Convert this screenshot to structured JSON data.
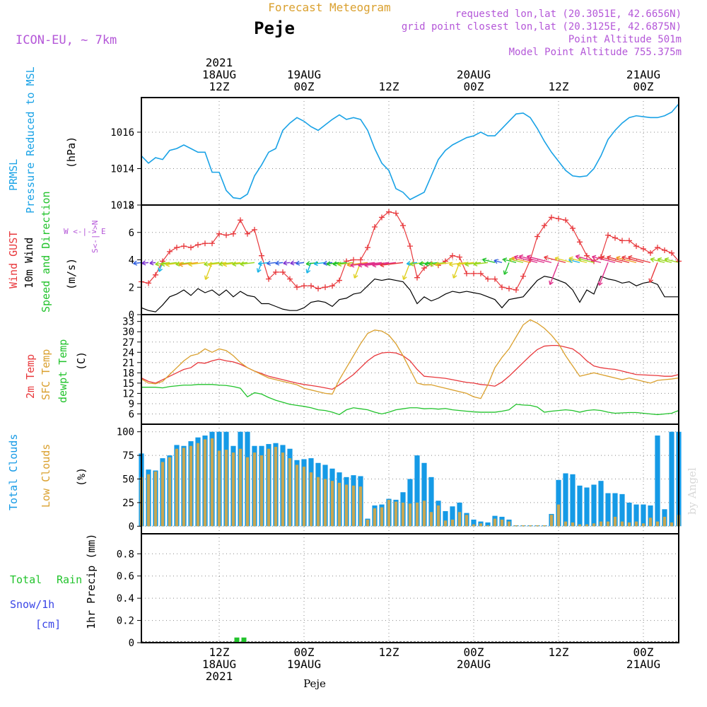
{
  "header": {
    "product_title": "Forecast Meteogram",
    "station": "Peje",
    "model": "ICON-EU, ~ 7km",
    "requested": "requested lon,lat (20.3051E, 42.6656N)",
    "grid_point": "grid point closest lon,lat (20.3125E, 42.6875N)",
    "point_altitude": "Point Altitude 501m",
    "model_altitude": "Model Point Altitude 755.375m"
  },
  "colors": {
    "pressure": "#19a2e6",
    "gust": "#e8383c",
    "wind": "#000000",
    "temp2m": "#e8383c",
    "sfc": "#daa02e",
    "dewpt": "#22c32c",
    "total_clouds": "#159ae6",
    "low_clouds": "#c8a752",
    "rain": "#22c32c",
    "snow": "#3a45e6",
    "purple": "#b457d8"
  },
  "time_axis": {
    "top": [
      {
        "x_hours": 12,
        "lines": [
          "2021",
          "18AUG",
          "12Z"
        ]
      },
      {
        "x_hours": 24,
        "lines": [
          "19AUG",
          "00Z"
        ]
      },
      {
        "x_hours": 36,
        "lines": [
          "12Z"
        ]
      },
      {
        "x_hours": 48,
        "lines": [
          "20AUG",
          "00Z"
        ]
      },
      {
        "x_hours": 60,
        "lines": [
          "12Z"
        ]
      },
      {
        "x_hours": 72,
        "lines": [
          "21AUG",
          "00Z"
        ]
      }
    ],
    "bottom": [
      {
        "x_hours": 12,
        "lines": [
          "12Z",
          "18AUG",
          "2021"
        ]
      },
      {
        "x_hours": 24,
        "lines": [
          "00Z",
          "19AUG"
        ]
      },
      {
        "x_hours": 36,
        "lines": [
          "12Z"
        ]
      },
      {
        "x_hours": 48,
        "lines": [
          "00Z",
          "20AUG"
        ]
      },
      {
        "x_hours": 60,
        "lines": [
          "12Z"
        ]
      },
      {
        "x_hours": 72,
        "lines": [
          "00Z",
          "21AUG"
        ]
      }
    ],
    "range_hours": [
      1,
      77
    ]
  },
  "panel_labels": {
    "pressure": {
      "l1": "PRMSL",
      "l2": "Pressure Reduced to MSL",
      "unit": "(hPa)"
    },
    "wind": {
      "l1": "Wind GUST",
      "l2": "10m Wind",
      "l3": "Speed and Direction",
      "unit": "(m/s)",
      "compass_n": "N",
      "compass_s": "S",
      "compass_ew": "W <-|-> E",
      "compass_sn": "S<-|->N"
    },
    "temp": {
      "l1": "2m Temp",
      "l2": "SFC Temp",
      "l3": "dewpt Temp",
      "unit": "(C)"
    },
    "clouds": {
      "l1": "Total Clouds",
      "l2": "Low Clouds",
      "unit": "(%)"
    },
    "precip": {
      "l1": "Total",
      "l1b": "Rain",
      "l2": "Snow/1h",
      "l3": "[cm]",
      "unit": "1hr Precip (mm)"
    }
  },
  "watermark": "by Angel",
  "footer": "Peje",
  "chart_data": [
    {
      "type": "line",
      "panel": "pressure",
      "x": [
        1,
        2,
        3,
        4,
        5,
        6,
        7,
        8,
        9,
        10,
        11,
        12,
        13,
        14,
        15,
        16,
        17,
        18,
        19,
        20,
        21,
        22,
        23,
        24,
        25,
        26,
        27,
        28,
        29,
        30,
        31,
        32,
        33,
        34,
        35,
        36,
        37,
        38,
        39,
        40,
        41,
        42,
        43,
        44,
        45,
        46,
        47,
        48,
        49,
        50,
        51,
        52,
        53,
        54,
        55,
        56,
        57,
        58,
        59,
        60,
        61,
        62,
        63,
        64,
        65,
        66,
        67,
        68,
        69,
        70,
        71,
        72,
        73,
        74,
        75,
        76,
        77
      ],
      "series": [
        {
          "name": "PRMSL",
          "values": [
            1014.7,
            1014.3,
            1014.6,
            1014.5,
            1015.0,
            1015.1,
            1015.3,
            1015.1,
            1014.9,
            1014.9,
            1013.8,
            1013.8,
            1012.8,
            1012.4,
            1012.35,
            1012.6,
            1013.6,
            1014.2,
            1014.9,
            1015.1,
            1016.1,
            1016.5,
            1016.8,
            1016.6,
            1016.3,
            1016.1,
            1016.4,
            1016.7,
            1016.95,
            1016.7,
            1016.8,
            1016.7,
            1016.1,
            1015.1,
            1014.3,
            1013.9,
            1012.9,
            1012.7,
            1012.3,
            1012.5,
            1012.7,
            1013.6,
            1014.5,
            1015.0,
            1015.3,
            1015.5,
            1015.7,
            1015.8,
            1016.0,
            1015.8,
            1015.8,
            1016.2,
            1016.6,
            1017.0,
            1017.05,
            1016.8,
            1016.2,
            1015.5,
            1014.9,
            1014.4,
            1013.9,
            1013.6,
            1013.55,
            1013.6,
            1014.0,
            1014.7,
            1015.6,
            1016.1,
            1016.5,
            1016.8,
            1016.9,
            1016.85,
            1016.8,
            1016.8,
            1016.9,
            1017.1,
            1017.55
          ]
        }
      ],
      "ylim": [
        1012,
        1017.9
      ],
      "yticks": [
        1012,
        1014,
        1016
      ],
      "ytick_labels": [
        "1012",
        "1014",
        "1016"
      ]
    },
    {
      "type": "line",
      "panel": "wind",
      "x": [
        1,
        2,
        3,
        4,
        5,
        6,
        7,
        8,
        9,
        10,
        11,
        12,
        13,
        14,
        15,
        16,
        17,
        18,
        19,
        20,
        21,
        22,
        23,
        24,
        25,
        26,
        27,
        28,
        29,
        30,
        31,
        32,
        33,
        34,
        35,
        36,
        37,
        38,
        39,
        40,
        41,
        42,
        43,
        44,
        45,
        46,
        47,
        48,
        49,
        50,
        51,
        52,
        53,
        54,
        55,
        56,
        57,
        58,
        59,
        60,
        61,
        62,
        63,
        64,
        65,
        66,
        67,
        68,
        69,
        70,
        71,
        72,
        73,
        74,
        75,
        76,
        77
      ],
      "series": [
        {
          "name": "Wind GUST",
          "values": [
            2.4,
            2.3,
            2.9,
            3.9,
            4.6,
            4.9,
            5.0,
            4.9,
            5.1,
            5.2,
            5.2,
            5.9,
            5.8,
            5.9,
            6.9,
            5.9,
            6.2,
            4.3,
            2.6,
            3.1,
            3.1,
            2.6,
            2.0,
            2.1,
            2.1,
            1.9,
            2.0,
            2.1,
            2.5,
            3.9,
            4.0,
            4.0,
            4.9,
            6.4,
            7.1,
            7.5,
            7.4,
            6.5,
            5.0,
            2.7,
            3.4,
            3.7,
            3.6,
            3.9,
            4.3,
            4.2,
            3.0,
            3.0,
            3.0,
            2.6,
            2.6,
            2.0,
            1.9,
            1.8,
            2.8,
            4.0,
            5.7,
            6.5,
            7.1,
            7.0,
            6.9,
            6.3,
            5.3,
            4.3,
            3.9,
            4.2,
            5.8,
            5.6,
            5.4,
            5.4,
            5.0,
            4.8,
            4.5,
            4.9,
            4.7,
            4.5,
            3.9
          ]
        },
        {
          "name": "10m Wind",
          "values": [
            0.5,
            0.3,
            0.2,
            0.7,
            1.3,
            1.5,
            1.8,
            1.4,
            1.9,
            1.6,
            1.8,
            1.4,
            1.8,
            1.3,
            1.7,
            1.4,
            1.3,
            0.8,
            0.8,
            0.6,
            0.4,
            0.3,
            0.3,
            0.5,
            0.9,
            1.0,
            0.9,
            0.6,
            1.1,
            1.2,
            1.5,
            1.6,
            2.1,
            2.6,
            2.5,
            2.6,
            2.5,
            2.4,
            1.8,
            0.8,
            1.3,
            1.0,
            1.2,
            1.5,
            1.7,
            1.6,
            1.7,
            1.6,
            1.5,
            1.3,
            1.1,
            0.5,
            1.1,
            1.2,
            1.3,
            1.9,
            2.5,
            2.8,
            2.7,
            2.5,
            2.3,
            1.8,
            0.9,
            1.8,
            1.5,
            2.8,
            2.6,
            2.5,
            2.3,
            2.4,
            2.1,
            2.3,
            2.4,
            2.2,
            1.3,
            1.3,
            1.3
          ]
        }
      ],
      "ylim": [
        0,
        8
      ],
      "yticks": [
        0,
        2,
        4,
        6,
        8
      ],
      "ytick_labels": [
        "0",
        "2",
        "4",
        "6",
        "8"
      ]
    },
    {
      "type": "line",
      "panel": "temp",
      "x": [
        1,
        2,
        3,
        4,
        5,
        6,
        7,
        8,
        9,
        10,
        11,
        12,
        13,
        14,
        15,
        16,
        17,
        18,
        19,
        20,
        21,
        22,
        23,
        24,
        25,
        26,
        27,
        28,
        29,
        30,
        31,
        32,
        33,
        34,
        35,
        36,
        37,
        38,
        39,
        40,
        41,
        42,
        43,
        44,
        45,
        46,
        47,
        48,
        49,
        50,
        51,
        52,
        53,
        54,
        55,
        56,
        57,
        58,
        59,
        60,
        61,
        62,
        63,
        64,
        65,
        66,
        67,
        68,
        69,
        70,
        71,
        72,
        73,
        74,
        75,
        76,
        77
      ],
      "series": [
        {
          "name": "2m Temp",
          "values": [
            16.5,
            15.5,
            15.0,
            16.0,
            17.0,
            18.0,
            19.0,
            19.5,
            21.0,
            20.8,
            21.5,
            22.0,
            21.5,
            21.2,
            20.5,
            19.5,
            18.5,
            17.8,
            17.0,
            16.5,
            16.0,
            15.5,
            15.0,
            14.6,
            14.3,
            14.0,
            13.6,
            13.2,
            14.5,
            16.0,
            17.5,
            19.5,
            21.5,
            23.0,
            23.8,
            24.0,
            23.8,
            23.0,
            21.5,
            19.0,
            17.0,
            16.8,
            16.6,
            16.4,
            16.0,
            15.6,
            15.2,
            15.0,
            14.6,
            14.4,
            14.1,
            15.3,
            17.0,
            19.0,
            21.0,
            23.0,
            24.8,
            25.8,
            26.0,
            26.0,
            25.5,
            25.0,
            23.5,
            21.5,
            20.0,
            19.5,
            19.2,
            19.0,
            18.5,
            18.0,
            17.5,
            17.4,
            17.3,
            17.2,
            17.0,
            17.0,
            17.5
          ]
        },
        {
          "name": "SFC Temp",
          "values": [
            16.2,
            15.0,
            14.8,
            15.5,
            17.5,
            19.5,
            21.5,
            23.0,
            23.5,
            25.0,
            24.0,
            25.0,
            24.5,
            23.0,
            21.0,
            19.5,
            18.5,
            17.5,
            16.5,
            16.0,
            15.5,
            15.0,
            14.5,
            13.5,
            13.0,
            12.5,
            12.0,
            11.8,
            16.0,
            19.5,
            23.0,
            26.5,
            29.5,
            30.5,
            30.2,
            29.0,
            26.5,
            23.0,
            19.0,
            15.0,
            14.5,
            14.5,
            14.0,
            13.5,
            13.0,
            12.5,
            12.0,
            11.0,
            10.5,
            14.5,
            19.5,
            22.5,
            25.0,
            28.5,
            32.0,
            33.5,
            32.5,
            31.0,
            29.0,
            26.5,
            23.0,
            20.0,
            17.0,
            17.5,
            18.0,
            17.5,
            17.0,
            16.5,
            16.0,
            16.5,
            16.0,
            15.5,
            15.0,
            15.8,
            16.0,
            16.2,
            16.5
          ]
        },
        {
          "name": "dewpt Temp",
          "values": [
            13.8,
            13.8,
            13.8,
            13.6,
            14.0,
            14.2,
            14.4,
            14.4,
            14.6,
            14.6,
            14.6,
            14.4,
            14.3,
            14.0,
            13.5,
            11.0,
            12.2,
            11.8,
            10.8,
            10.0,
            9.4,
            8.8,
            8.5,
            8.2,
            7.8,
            7.2,
            7.0,
            6.5,
            5.8,
            7.2,
            7.8,
            7.5,
            7.2,
            6.5,
            6.0,
            6.5,
            7.2,
            7.5,
            7.8,
            7.8,
            7.5,
            7.6,
            7.4,
            7.6,
            7.2,
            7.0,
            6.8,
            6.6,
            6.5,
            6.5,
            6.5,
            6.8,
            7.2,
            8.8,
            8.6,
            8.5,
            8.0,
            6.5,
            6.8,
            7.0,
            7.2,
            7.0,
            6.5,
            7.0,
            7.2,
            7.0,
            6.5,
            6.2,
            6.3,
            6.4,
            6.4,
            6.2,
            6.0,
            5.8,
            6.0,
            6.2,
            7.0
          ]
        }
      ],
      "ylim": [
        3,
        35
      ],
      "yticks": [
        6,
        9,
        12,
        15,
        18,
        21,
        24,
        27,
        30,
        33
      ],
      "ytick_labels": [
        "6",
        "9",
        "12",
        "15",
        "18",
        "21",
        "24",
        "27",
        "30",
        "33"
      ]
    },
    {
      "type": "bar",
      "panel": "clouds",
      "x": [
        1,
        2,
        3,
        4,
        5,
        6,
        7,
        8,
        9,
        10,
        11,
        12,
        13,
        14,
        15,
        16,
        17,
        18,
        19,
        20,
        21,
        22,
        23,
        24,
        25,
        26,
        27,
        28,
        29,
        30,
        31,
        32,
        33,
        34,
        35,
        36,
        37,
        38,
        39,
        40,
        41,
        42,
        43,
        44,
        45,
        46,
        47,
        48,
        49,
        50,
        51,
        52,
        53,
        54,
        55,
        56,
        57,
        58,
        59,
        60,
        61,
        62,
        63,
        64,
        65,
        66,
        67,
        68,
        69,
        70,
        71,
        72,
        73,
        74,
        75,
        76,
        77
      ],
      "series": [
        {
          "name": "Total Clouds",
          "values": [
            77,
            60,
            59,
            72,
            75,
            86,
            85,
            90,
            94,
            96,
            100,
            100,
            100,
            85,
            100,
            100,
            85,
            85,
            87,
            88,
            86,
            82,
            70,
            71,
            72,
            67,
            65,
            61,
            57,
            52,
            54,
            53,
            8,
            22,
            23,
            29,
            28,
            36,
            50,
            75,
            67,
            52,
            27,
            16,
            21,
            25,
            14,
            7,
            5,
            4,
            11,
            10,
            7,
            1,
            1,
            1,
            1,
            1,
            13,
            49,
            56,
            55,
            43,
            41,
            44,
            48,
            35,
            35,
            34,
            25,
            23,
            23,
            22,
            96,
            18,
            100,
            100
          ]
        },
        {
          "name": "Low Clouds",
          "values": [
            52,
            55,
            58,
            68,
            73,
            82,
            83,
            85,
            88,
            92,
            93,
            80,
            81,
            78,
            82,
            73,
            78,
            75,
            82,
            84,
            78,
            72,
            65,
            63,
            57,
            52,
            50,
            48,
            46,
            44,
            43,
            42,
            7,
            19,
            20,
            28,
            26,
            25,
            24,
            25,
            27,
            15,
            22,
            6,
            7,
            15,
            12,
            2,
            3,
            1,
            8,
            7,
            5,
            1,
            1,
            1,
            1,
            1,
            12,
            23,
            5,
            4,
            2,
            2,
            3,
            5,
            5,
            10,
            5,
            4,
            5,
            3,
            9,
            5,
            10,
            4,
            12
          ]
        }
      ],
      "ylim": [
        -8,
        108
      ],
      "yticks": [
        0,
        25,
        50,
        75,
        100
      ],
      "ytick_labels": [
        "0",
        "25",
        "50",
        "75",
        "100"
      ]
    },
    {
      "type": "bar",
      "panel": "precip",
      "x": [
        14.5,
        15.5
      ],
      "series": [
        {
          "name": "Total Rain",
          "values": [
            0.04,
            0.04
          ]
        }
      ],
      "ylim": [
        0,
        0.98
      ],
      "yticks": [
        0,
        0.2,
        0.4,
        0.6,
        0.8
      ],
      "ytick_labels": [
        "0",
        "0.2",
        "0.4",
        "0.6",
        "0.8"
      ]
    }
  ]
}
